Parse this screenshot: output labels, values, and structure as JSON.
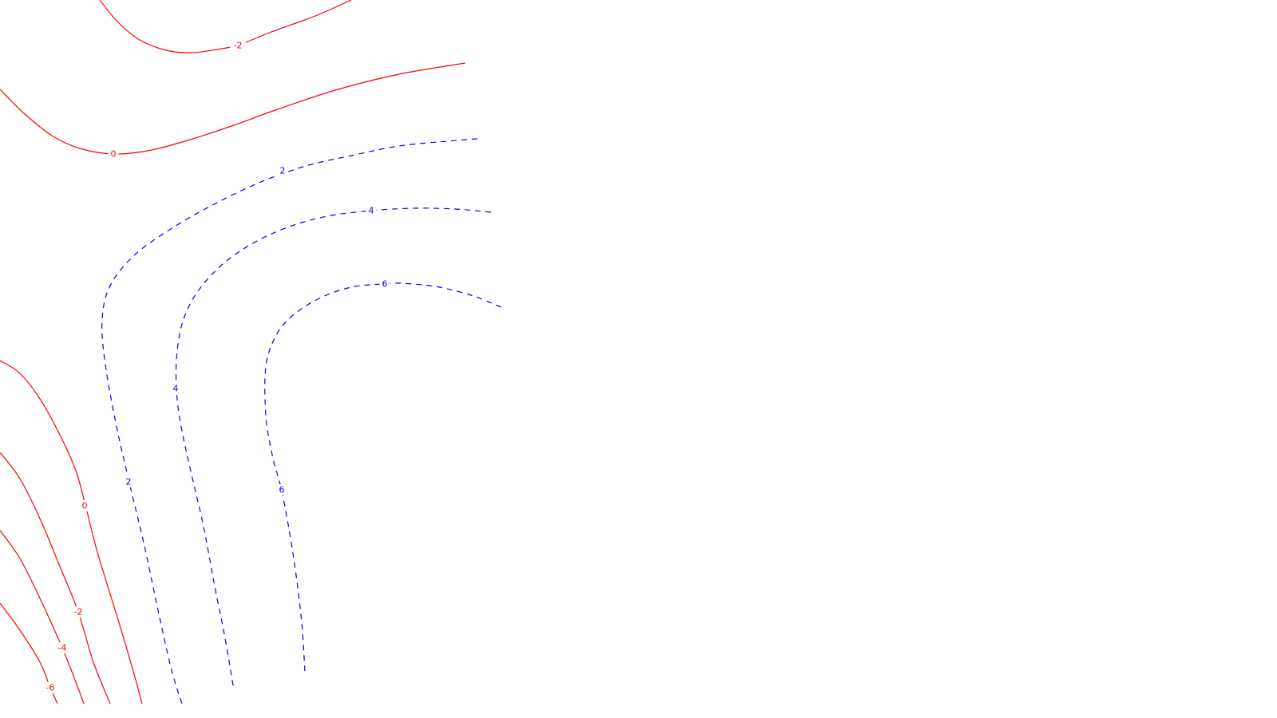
{
  "chart_data": {
    "type": "contour",
    "title": "",
    "xlabel": "",
    "ylabel": "",
    "grid": false,
    "legend": "none",
    "colors": {
      "negative_and_zero": "#ff0000",
      "positive": "#0000ff",
      "background": "#ffffff"
    },
    "levels": [
      {
        "level": -2,
        "label": "-2",
        "sign": "zero-or-negative",
        "style": "solid",
        "region": "upper-left"
      },
      {
        "level": 0,
        "label": "0",
        "sign": "zero-or-negative",
        "style": "solid",
        "region": "upper-left"
      },
      {
        "level": 2,
        "label": "2",
        "sign": "positive",
        "style": "dashed",
        "region": "center-left"
      },
      {
        "level": 4,
        "label": "4",
        "sign": "positive",
        "style": "dashed",
        "region": "center-left"
      },
      {
        "level": 6,
        "label": "6",
        "sign": "positive",
        "style": "dashed",
        "region": "center-left"
      },
      {
        "level": 0,
        "label": "0",
        "sign": "zero-or-negative",
        "style": "solid",
        "region": "lower-left"
      },
      {
        "level": -2,
        "label": "-2",
        "sign": "zero-or-negative",
        "style": "solid",
        "region": "lower-left"
      },
      {
        "level": -4,
        "label": "-4",
        "sign": "zero-or-negative",
        "style": "solid",
        "region": "lower-left"
      },
      {
        "level": -6,
        "label": "-6",
        "sign": "zero-or-negative",
        "style": "solid",
        "region": "lower-left"
      }
    ]
  }
}
